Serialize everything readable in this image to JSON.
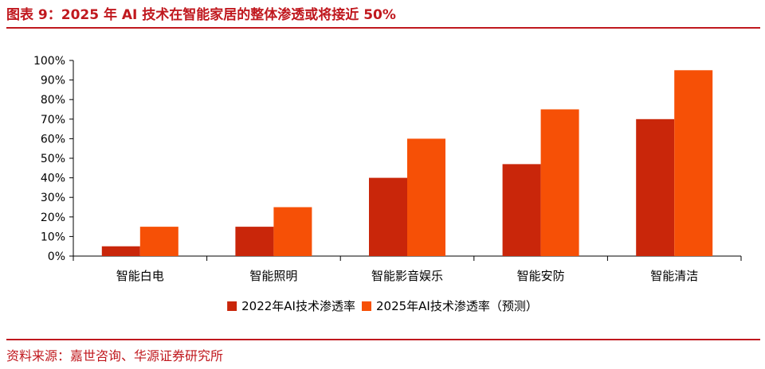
{
  "header": {
    "title": "图表 9：2025 年 AI 技术在智能家居的整体渗透或将接近 50%"
  },
  "footer": {
    "source": "资料来源：嘉世咨询、华源证券研究所"
  },
  "colors": {
    "accent": "#c0181e",
    "series_2022": "#c9260a",
    "series_2025": "#f65006"
  },
  "chart_data": {
    "type": "bar",
    "categories": [
      "智能白电",
      "智能照明",
      "智能影音娱乐",
      "智能安防",
      "智能清洁"
    ],
    "series": [
      {
        "name": "2022年AI技术渗透率",
        "values": [
          5,
          15,
          40,
          47,
          70
        ]
      },
      {
        "name": "2025年AI技术渗透率（预测）",
        "values": [
          15,
          25,
          60,
          75,
          95
        ]
      }
    ],
    "ylim": [
      0,
      100
    ],
    "yticks": [
      "0%",
      "10%",
      "20%",
      "30%",
      "40%",
      "50%",
      "60%",
      "70%",
      "80%",
      "90%",
      "100%"
    ],
    "grid": false,
    "legend_position": "bottom"
  }
}
